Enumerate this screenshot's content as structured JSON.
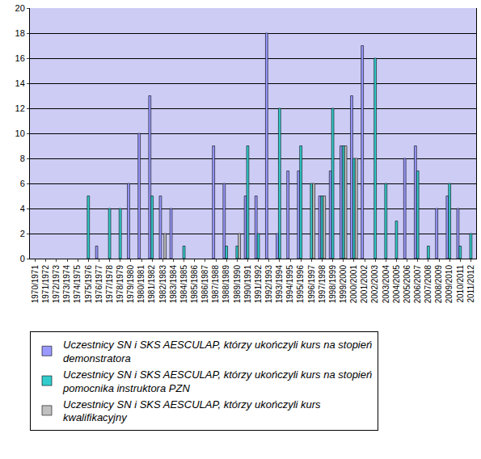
{
  "chart_data": {
    "type": "bar",
    "categories": [
      "1970/1971",
      "1971/1972",
      "1972/1973",
      "1973/1974",
      "1974/1975",
      "1975/1976",
      "1976/1977",
      "1977/1978",
      "1978/1979",
      "1979/1980",
      "1980/1981",
      "1981/1982",
      "1982/1983",
      "1983/1984",
      "1984/1985",
      "1985/1986",
      "1986/1987",
      "1987/1988",
      "1988/1989",
      "1989/1990",
      "1990/1991",
      "1991/1992",
      "1992/1993",
      "1993/1994",
      "1994/1995",
      "1995/1996",
      "1996/1997",
      "1997/1998",
      "1998/1999",
      "1999/2000",
      "2000/2001",
      "2001/2002",
      "2002/2003",
      "2003/2004",
      "2004/2005",
      "2005/2006",
      "2006/2007",
      "2007/2008",
      "2008/2009",
      "2009/2010",
      "2010/2011",
      "2011/2012"
    ],
    "series": [
      {
        "name": "Uczestnicy SN i SKS AESCULAP, którzy ukończyli kurs na stopień demonstratora",
        "color": "#9999ff",
        "values": [
          null,
          null,
          null,
          null,
          null,
          null,
          1,
          null,
          null,
          6,
          10,
          13,
          5,
          4,
          null,
          null,
          null,
          9,
          6,
          null,
          5,
          5,
          18,
          2,
          7,
          7,
          null,
          5,
          7,
          9,
          13,
          17,
          null,
          null,
          null,
          8,
          9,
          null,
          4,
          5,
          4,
          null
        ]
      },
      {
        "name": "Uczestnicy SN i SKS AESCULAP, którzy ukończyli kurs na stopień pomocnika instruktora PZN",
        "color": "#33cccc",
        "values": [
          null,
          null,
          null,
          null,
          null,
          5,
          null,
          4,
          4,
          null,
          null,
          5,
          null,
          null,
          1,
          null,
          null,
          null,
          1,
          1,
          9,
          2,
          null,
          12,
          null,
          9,
          6,
          5,
          12,
          9,
          8,
          null,
          16,
          6,
          3,
          null,
          7,
          1,
          null,
          6,
          1,
          2
        ]
      },
      {
        "name": "Uczestnicy SN i SKS AESCULAP, którzy ukończyli kurs kwalifikacyjny",
        "color": "#c0c0c0",
        "values": [
          null,
          null,
          null,
          null,
          null,
          null,
          null,
          null,
          null,
          null,
          null,
          null,
          2,
          null,
          null,
          null,
          null,
          null,
          null,
          2,
          null,
          null,
          null,
          null,
          null,
          null,
          6,
          5,
          null,
          9,
          8,
          null,
          null,
          null,
          null,
          null,
          null,
          null,
          null,
          null,
          null,
          null
        ]
      }
    ],
    "ylim": [
      0,
      20
    ],
    "yticks": [
      0,
      2,
      4,
      6,
      8,
      10,
      12,
      14,
      16,
      18,
      20
    ],
    "grid": true,
    "legend": "bottom"
  }
}
